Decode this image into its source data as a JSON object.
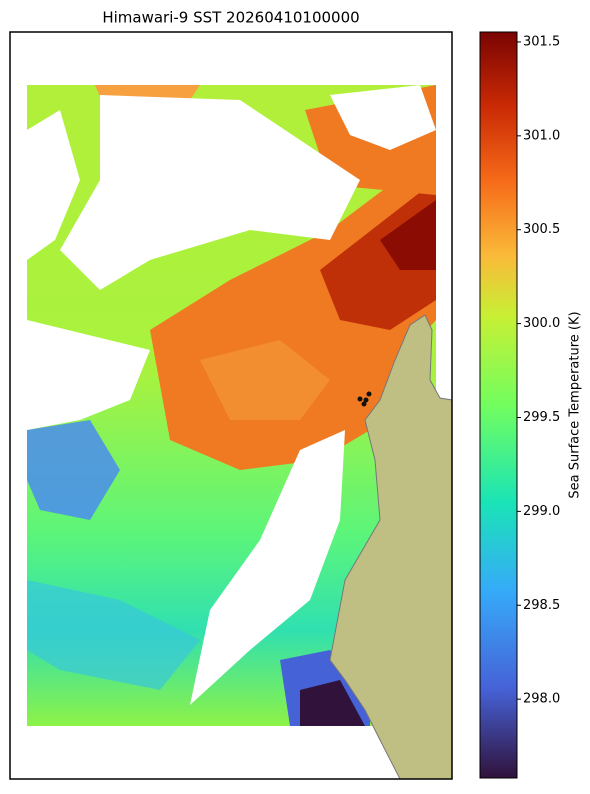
{
  "title": "Himawari-9 SST 20260410100000",
  "colorbar": {
    "label": "Sea Surface Temperature (K)",
    "lim": [
      297.58,
      301.553
    ],
    "ticks": [
      {
        "value": 298,
        "label": "298.0"
      },
      298.5,
      {
        "value": 299,
        "label": "299.0"
      },
      299.5,
      {
        "value": 300,
        "label": "300.0"
      },
      300.5,
      {
        "value": 301,
        "label": "301.0"
      },
      301.5
    ]
  }
}
